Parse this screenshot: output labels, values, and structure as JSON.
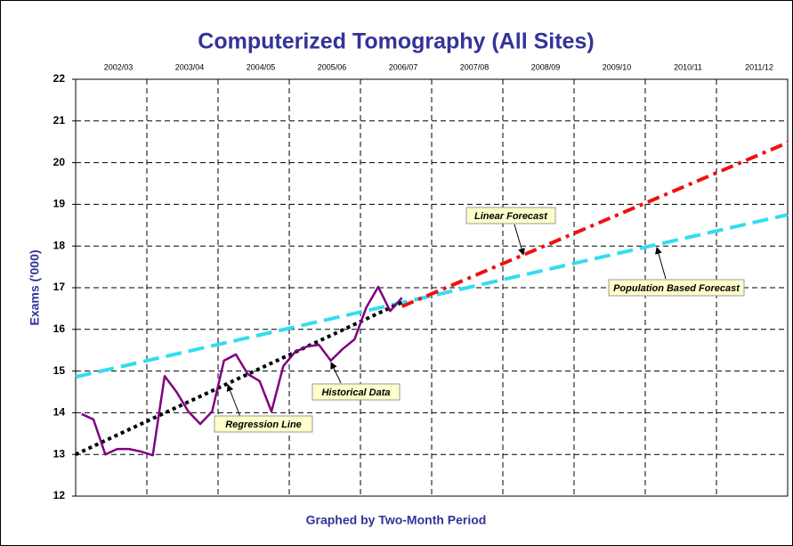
{
  "chart_data": {
    "type": "line",
    "title": "Computerized Tomography (All Sites)",
    "x_label": "Graphed by Two-Month Period",
    "y_label": "Exams ('000)",
    "categories": [
      "2002/03",
      "2003/04",
      "2004/05",
      "2005/06",
      "2006/07",
      "2007/08",
      "2008/09",
      "2009/10",
      "2010/11",
      "2011/12"
    ],
    "xlim": [
      0,
      60
    ],
    "ylim": [
      12,
      22
    ],
    "yticks": [
      12,
      13,
      14,
      15,
      16,
      17,
      18,
      19,
      20,
      21,
      22
    ],
    "grid": true,
    "series": [
      {
        "name": "Population Based Forecast",
        "color": "#33ddee",
        "style": "dashed",
        "x": [
          0,
          60
        ],
        "values": [
          14.86,
          18.75
        ]
      },
      {
        "name": "Regression Line",
        "color": "#000000",
        "style": "dotted",
        "x": [
          0,
          27.5
        ],
        "values": [
          13.0,
          16.65
        ]
      },
      {
        "name": "Linear Forecast",
        "color": "#ee1111",
        "style": "dashdot",
        "x": [
          27.5,
          60
        ],
        "values": [
          16.55,
          20.48
        ]
      },
      {
        "name": "Historical Data",
        "color": "#800080",
        "style": "solid",
        "x": [
          0.5,
          1.5,
          2.5,
          3.5,
          4.5,
          5.5,
          6.5,
          7.5,
          8.5,
          9.5,
          10.5,
          11.5,
          12.5,
          13.5,
          14.5,
          15.5,
          16.5,
          17.5,
          18.5,
          19.5,
          20.5,
          21.5,
          22.5,
          23.5,
          24.5,
          25.5,
          26.5,
          27.5
        ],
        "values": [
          13.97,
          13.84,
          13.0,
          13.13,
          13.13,
          13.07,
          12.98,
          14.88,
          14.5,
          14.03,
          13.73,
          14.03,
          15.25,
          15.4,
          14.93,
          14.76,
          14.03,
          15.12,
          15.46,
          15.59,
          15.63,
          15.25,
          15.53,
          15.76,
          16.53,
          17.02,
          16.44,
          16.76
        ]
      }
    ]
  }
}
